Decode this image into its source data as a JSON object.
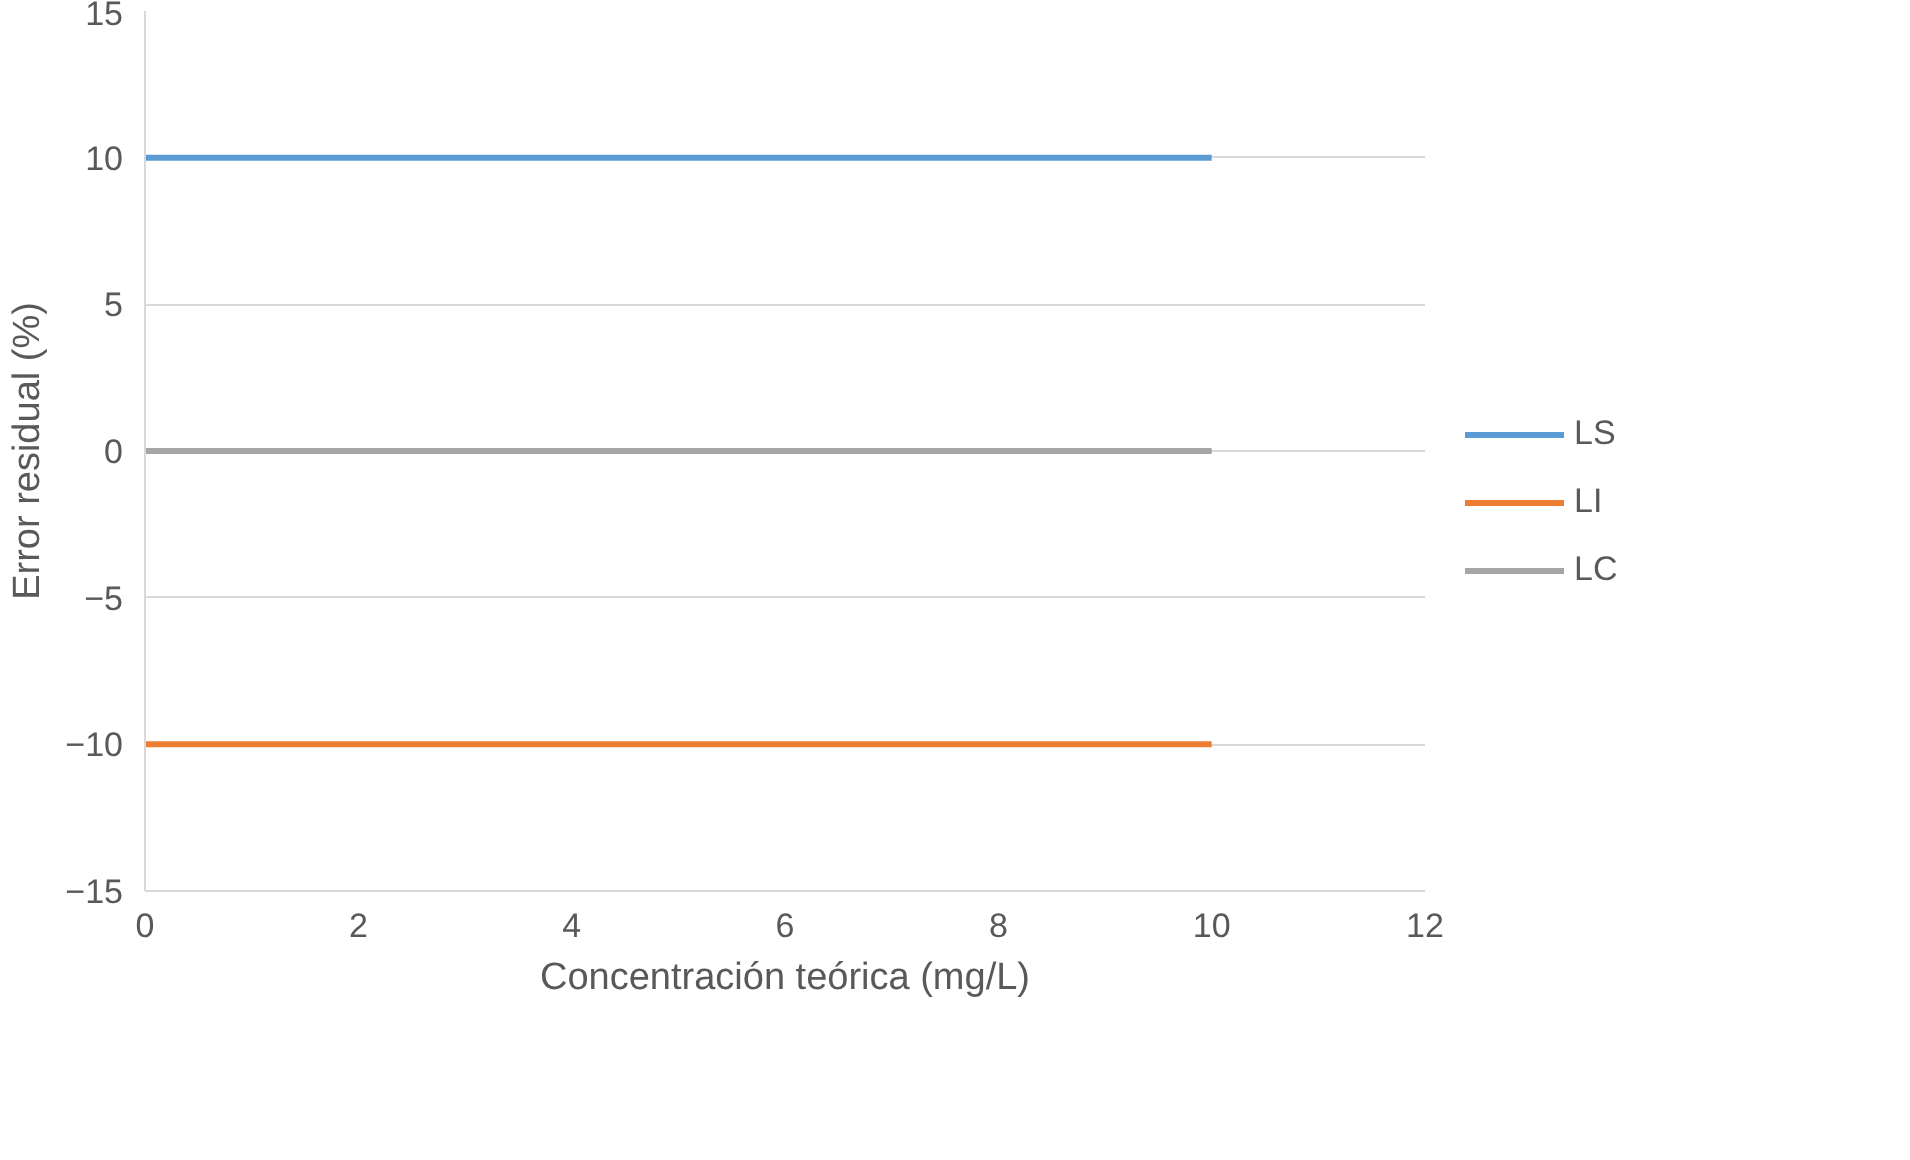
{
  "chart_data": {
    "type": "line",
    "xlabel": "Concentración teórica (mg/L)",
    "ylabel": "Error residual (%)",
    "x": [
      0,
      10
    ],
    "series": [
      {
        "name": "LS",
        "color": "#5b9bd5",
        "values": [
          10,
          10
        ]
      },
      {
        "name": "LI",
        "color": "#ed7d31",
        "values": [
          -10,
          -10
        ]
      },
      {
        "name": "LC",
        "color": "#a5a5a5",
        "values": [
          0,
          0
        ]
      }
    ],
    "xlim": [
      0,
      12
    ],
    "xticks": [
      0,
      2,
      4,
      6,
      8,
      10,
      12
    ],
    "ylim": [
      -15,
      15
    ],
    "yticks": [
      -15,
      -10,
      -5,
      0,
      5,
      10,
      15
    ],
    "grid": "y",
    "legend": "right",
    "marker": "none",
    "line_style": "solid"
  }
}
